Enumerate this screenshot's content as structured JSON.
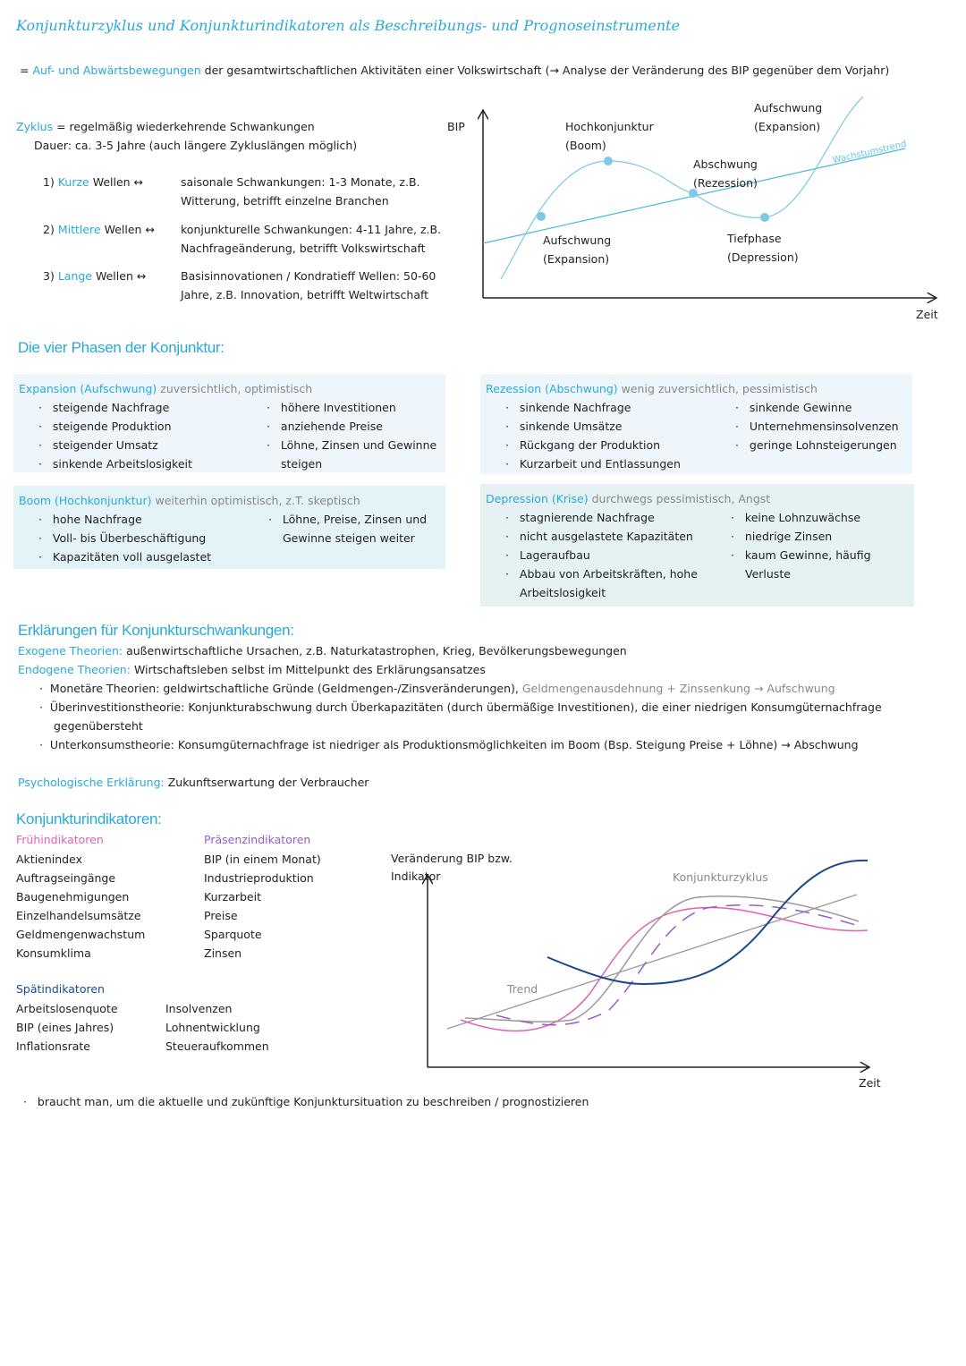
{
  "title": "Konjunkturzyklus und Konjunkturindikatoren als Beschreibungs- und Prognoseinstrumente",
  "intro": {
    "highlight": "Auf- und Abwärtsbewegungen",
    "text": "der gesamtwirtschaftlichen Aktivitäten einer Volkswirtschaft (→ Analyse der Veränderung des BIP gegenüber dem Vorjahr)"
  },
  "cycle": {
    "term": "Zyklus",
    "definition": "= regelmäßig wiederkehrende Schwankungen",
    "duration": "Dauer: ca. 3-5 Jahre (auch längere Zykluslängen möglich)",
    "waves": [
      {
        "number": "1)",
        "name": "Kurze",
        "connector": "Wellen ↔",
        "text": "saisonale Schwankungen: 1-3 Monate, z.B. Witterung, betrifft einzelne Branchen"
      },
      {
        "number": "2)",
        "name": "Mittlere",
        "connector": "Wellen ↔",
        "text": "konjunkturelle Schwankungen: 4-11 Jahre, z.B. Nachfrageänderung, betrifft Volkswirtschaft"
      },
      {
        "number": "3)",
        "name": "Lange",
        "connector": "Wellen ↔",
        "text": "Basisinnovationen / Kondratieff Wellen: 50-60 Jahre, z.B. Innovation, betrifft Weltwirtschaft"
      }
    ]
  },
  "cycle_diagram": {
    "y_axis": "BIP",
    "x_axis": "Zeit",
    "trend": "Wachstumstrend",
    "labels": [
      "Hochkonjunktur (Boom)",
      "Aufschwung (Expansion)",
      "Abschwung (Rezession)",
      "Aufschwung (Expansion)",
      "Tiefphase (Depression)"
    ]
  },
  "phases": {
    "heading": "Die vier Phasen der Konjunktur:",
    "boxes": [
      {
        "name": "Expansion (Aufschwung)",
        "mood": "zuversichtlich, optimistisch",
        "left": [
          "steigende Nachfrage",
          "steigende Produktion",
          "steigender Umsatz",
          "sinkende Arbeitslosigkeit"
        ],
        "right": [
          "höhere Investitionen",
          "anziehende Preise",
          "Löhne, Zinsen und Gewinne steigen"
        ]
      },
      {
        "name": "Rezession (Abschwung)",
        "mood": "wenig zuversichtlich, pessimistisch",
        "left": [
          "sinkende Nachfrage",
          "sinkende Umsätze",
          "Rückgang der Produktion",
          "Kurzarbeit und Entlassungen"
        ],
        "right": [
          "sinkende Gewinne",
          "Unternehmensinsolvenzen",
          "geringe Lohnsteigerungen"
        ]
      },
      {
        "name": "Boom (Hochkonjunktur)",
        "mood": "weiterhin optimistisch, z.T. skeptisch",
        "left": [
          "hohe Nachfrage",
          "Voll- bis Überbeschäftigung",
          "Kapazitäten voll ausgelastet"
        ],
        "right": [
          "Löhne, Preise, Zinsen und Gewinne steigen weiter"
        ]
      },
      {
        "name": "Depression (Krise)",
        "mood": "durchwegs pessimistisch, Angst",
        "left": [
          "stagnierende Nachfrage",
          "nicht ausgelastete Kapazitäten",
          "Lageraufbau",
          "Abbau von Arbeitskräften, hohe Arbeitslosigkeit"
        ],
        "right": [
          "keine Lohnzuwächse",
          "niedrige Zinsen",
          "kaum Gewinne, häufig Verluste"
        ]
      }
    ]
  },
  "explanations": {
    "heading": "Erklärungen für Konjunkturschwankungen:",
    "exogenous": {
      "term": "Exogene Theorien:",
      "text": "außenwirtschaftliche Ursachen, z.B. Naturkatastrophen, Krieg, Bevölkerungsbewegungen"
    },
    "endogenous": {
      "term": "Endogene Theorien:",
      "text": "Wirtschaftsleben selbst im Mittelpunkt des Erklärungsansatzes",
      "theories": [
        {
          "term": "Monetäre Theorien:",
          "text": "geldwirtschaftliche Gründe (Geldmengen-/Zinsveränderungen),",
          "note": "Geldmengenausdehnung + Zinssenkung → Aufschwung"
        },
        {
          "term": "Überinvestitionstheorie:",
          "text": "Konjunkturabschwung durch Überkapazitäten (durch übermäßige Investitionen), die einer niedrigen Konsumgüternachfrage gegenübersteht"
        },
        {
          "term": "Unterkonsumstheorie:",
          "text": "Konsumgüternachfrage ist niedriger als Produktionsmöglichkeiten im Boom (Bsp. Steigung Preise + Löhne) → Abschwung"
        }
      ]
    },
    "psychological": {
      "term": "Psychologische Erklärung:",
      "text": "Zukunftserwartung der Verbraucher"
    }
  },
  "indicators": {
    "heading": "Konjunkturindikatoren:",
    "groups": [
      {
        "name": "Frühindikatoren",
        "items": [
          "Aktienindex",
          "Auftragseingänge",
          "Baugenehmigungen",
          "Einzelhandelsumsätze",
          "Geldmengenwachstum",
          "Konsumklima"
        ]
      },
      {
        "name": "Präsenzindikatoren",
        "items": [
          "BIP (in einem Monat)",
          "Industrieproduktion",
          "Kurzarbeit",
          "Preise",
          "Sparquote",
          "Zinsen"
        ]
      },
      {
        "name": "Spätindikatoren",
        "items": [
          "Arbeitslosenquote",
          "BIP (eines Jahres)",
          "Inflationsrate",
          "Insolvenzen",
          "Lohnentwicklung",
          "Steueraufkommen"
        ]
      }
    ],
    "diagram": {
      "y_axis": "Veränderung BIP bzw. Indikator",
      "x_axis": "Zeit",
      "cycle": "Konjunkturzyklus",
      "trend": "Trend"
    }
  },
  "footer": "braucht man, um die aktuelle und zukünftige Konjunktursituation zu beschreiben / prognostizieren"
}
